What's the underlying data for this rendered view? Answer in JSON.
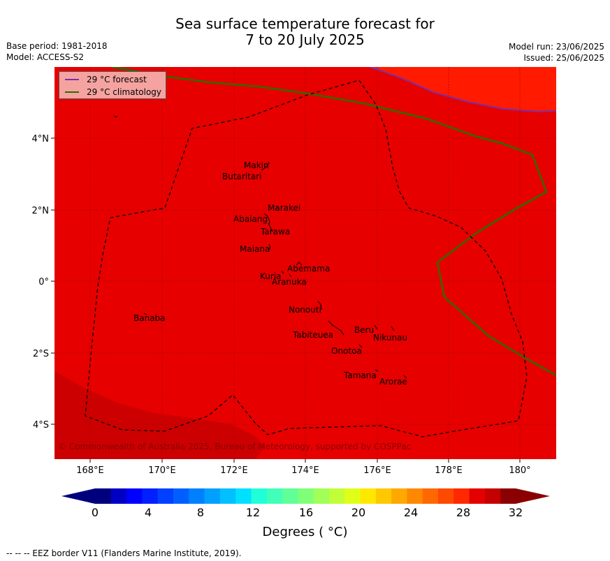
{
  "header": {
    "title_line1": "Sea surface temperature forecast for",
    "title_line2": "7 to 20 July 2025",
    "base_period": "Base period: 1981-2018",
    "model": "Model: ACCESS-S2",
    "model_run": "Model run: 23/06/2025",
    "issued": "Issued: 25/06/2025"
  },
  "legend": {
    "forecast_label": "29 °C  forecast",
    "climatology_label": "29 °C  climatology",
    "forecast_color": "#7b2fa8",
    "climatology_color": "#2e6b00"
  },
  "axes": {
    "lat_labels": [
      "4°N",
      "2°N",
      "0°",
      "2°S",
      "4°S"
    ],
    "lon_labels": [
      "168°E",
      "170°E",
      "172°E",
      "174°E",
      "176°E",
      "178°E",
      "180°"
    ]
  },
  "places": [
    {
      "name": "Makin"
    },
    {
      "name": "Butaritari"
    },
    {
      "name": "Marakei"
    },
    {
      "name": "Abaiang"
    },
    {
      "name": "Tarawa"
    },
    {
      "name": "Maiana"
    },
    {
      "name": "Abemama"
    },
    {
      "name": "Kuria"
    },
    {
      "name": "Aranuka"
    },
    {
      "name": "Nonouti"
    },
    {
      "name": "Banaba"
    },
    {
      "name": "Beru"
    },
    {
      "name": "Nikunau"
    },
    {
      "name": "Tabiteuea"
    },
    {
      "name": "Onotoa"
    },
    {
      "name": "Tamana"
    },
    {
      "name": "Arorae"
    }
  ],
  "copyright": "© Commonwealth of Australia 2025, Bureau of Meteorology, supported by COSPPac",
  "colorbar": {
    "tick_labels": [
      "0",
      "4",
      "8",
      "12",
      "16",
      "20",
      "24",
      "28",
      "32"
    ],
    "title": "Degrees ( °C)",
    "colors": [
      "#00007f",
      "#0000c4",
      "#0000ff",
      "#0020ff",
      "#0040ff",
      "#0060ff",
      "#0080ff",
      "#00a0ff",
      "#00c0ff",
      "#00e0ff",
      "#20ffd8",
      "#40ffb8",
      "#60ff98",
      "#80ff78",
      "#a0ff58",
      "#c0ff38",
      "#e0ff18",
      "#ffe800",
      "#ffc800",
      "#ffa800",
      "#ff8800",
      "#ff6800",
      "#ff4800",
      "#ff2800",
      "#e40000",
      "#c40000",
      "#8b0000"
    ],
    "under_color": "#00007f",
    "over_color": "#8b0000"
  },
  "map_colors": {
    "main": "#e60000",
    "warm": "#ff1a00",
    "cool": "#cc0000"
  },
  "footer": "--  --  -- EEZ border V11 (Flanders Marine Institute, 2019)."
}
